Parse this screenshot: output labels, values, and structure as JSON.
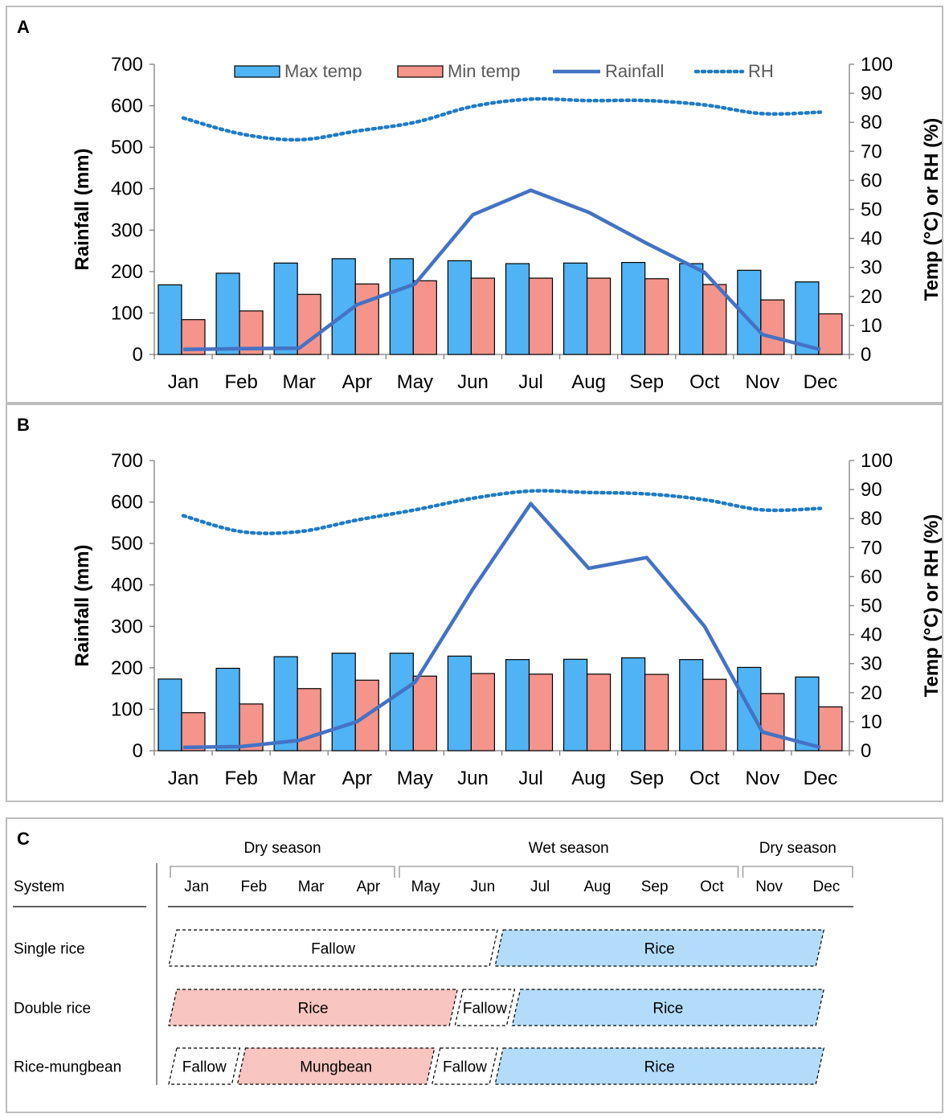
{
  "chart_data": [
    {
      "panel": "A",
      "type": "bar+line",
      "categories": [
        "Jan",
        "Feb",
        "Mar",
        "Apr",
        "May",
        "Jun",
        "Jul",
        "Aug",
        "Sep",
        "Oct",
        "Nov",
        "Dec"
      ],
      "series": [
        {
          "name": "Max temp",
          "type": "bar",
          "axis": "right",
          "color": "#4fb3f5",
          "values": [
            24,
            28,
            31.5,
            33,
            33,
            32.3,
            31.3,
            31.5,
            31.7,
            31.3,
            29,
            25
          ]
        },
        {
          "name": "Min temp",
          "type": "bar",
          "axis": "right",
          "color": "#f4948a",
          "values": [
            12,
            15,
            20.7,
            24.3,
            25.4,
            26.3,
            26.3,
            26.3,
            26.1,
            24.1,
            18.8,
            14
          ]
        },
        {
          "name": "Rainfall",
          "type": "line",
          "axis": "left",
          "color": "#4472c4",
          "values": [
            12,
            14,
            15,
            120,
            170,
            337,
            396,
            343,
            268,
            198,
            48,
            12
          ]
        },
        {
          "name": "RH",
          "type": "dotted-line",
          "axis": "right",
          "color": "#1f7bc4",
          "values": [
            81.5,
            76,
            74,
            77,
            80,
            85.5,
            88,
            87.5,
            87.5,
            86,
            83,
            83.5
          ]
        }
      ],
      "ylabel_left": "Rainfall (mm)",
      "ylim_left": [
        0,
        700
      ],
      "yticks_left": [
        "0",
        "100",
        "200",
        "300",
        "400",
        "500",
        "600",
        "700"
      ],
      "ylabel_right": "Temp (°C) or RH (%)",
      "ylim_right": [
        0,
        100
      ],
      "yticks_right": [
        "0",
        "10",
        "20",
        "30",
        "40",
        "50",
        "60",
        "70",
        "80",
        "90",
        "100"
      ],
      "legend_position": "top"
    },
    {
      "panel": "B",
      "type": "bar+line",
      "categories": [
        "Jan",
        "Feb",
        "Mar",
        "Apr",
        "May",
        "Jun",
        "Jul",
        "Aug",
        "Sep",
        "Oct",
        "Nov",
        "Dec"
      ],
      "series": [
        {
          "name": "Max temp",
          "type": "bar",
          "axis": "right",
          "color": "#4fb3f5",
          "values": [
            24.7,
            28.4,
            32.4,
            33.6,
            33.6,
            32.6,
            31.4,
            31.5,
            32,
            31.4,
            28.7,
            25.4
          ]
        },
        {
          "name": "Min temp",
          "type": "bar",
          "axis": "right",
          "color": "#f4948a",
          "values": [
            13.1,
            16.1,
            21.4,
            24.3,
            25.7,
            26.6,
            26.4,
            26.4,
            26.3,
            24.6,
            19.7,
            15.1
          ]
        },
        {
          "name": "Rainfall",
          "type": "line",
          "axis": "left",
          "color": "#4472c4",
          "values": [
            8,
            10,
            25,
            70,
            165,
            390,
            596,
            440,
            466,
            300,
            45,
            8
          ]
        },
        {
          "name": "RH",
          "type": "dotted-line",
          "axis": "right",
          "color": "#1f7bc4",
          "values": [
            81,
            75.5,
            75.5,
            79.5,
            83,
            87,
            89.5,
            89,
            88.5,
            86.5,
            83,
            83.5
          ]
        }
      ],
      "ylabel_left": "Rainfall (mm)",
      "ylim_left": [
        0,
        700
      ],
      "yticks_left": [
        "0",
        "100",
        "200",
        "300",
        "400",
        "500",
        "600",
        "700"
      ],
      "ylabel_right": "Temp (°C) or RH (%)",
      "ylim_right": [
        0,
        100
      ],
      "yticks_right": [
        "0",
        "10",
        "20",
        "30",
        "40",
        "50",
        "60",
        "70",
        "80",
        "90",
        "100"
      ]
    }
  ],
  "panels": {
    "a_label": "A",
    "b_label": "B",
    "c_label": "C"
  },
  "legend": {
    "max_temp": "Max temp",
    "min_temp": "Min temp",
    "rainfall": "Rainfall",
    "rh": "RH"
  },
  "colors": {
    "max_temp": "#4fb3f5",
    "min_temp": "#f4948a",
    "rainfall": "#4472c4",
    "rh": "#1f7bc4",
    "rice_wet": "#b3dcfb",
    "crop_dry": "#f8c5c0"
  },
  "calendar": {
    "seasons": [
      "Dry season",
      "Wet season",
      "Dry season"
    ],
    "system_header": "System",
    "months": [
      "Jan",
      "Feb",
      "Mar",
      "Apr",
      "May",
      "Jun",
      "Jul",
      "Aug",
      "Sep",
      "Oct",
      "Nov",
      "Dec"
    ],
    "rows": [
      {
        "system": "Single rice",
        "blocks": [
          {
            "label": "Fallow",
            "start_month": 1,
            "end_month": 6.7,
            "fill": "none"
          },
          {
            "label": "Rice",
            "start_month": 6.7,
            "end_month": 12.4,
            "fill": "rice_wet"
          }
        ]
      },
      {
        "system": "Double rice",
        "blocks": [
          {
            "label": "Rice",
            "start_month": 1,
            "end_month": 6,
            "fill": "crop_dry"
          },
          {
            "label": "Fallow",
            "start_month": 6,
            "end_month": 7,
            "fill": "none"
          },
          {
            "label": "Rice",
            "start_month": 7,
            "end_month": 12.4,
            "fill": "rice_wet"
          }
        ]
      },
      {
        "system": "Rice-mungbean",
        "blocks": [
          {
            "label": "Fallow",
            "start_month": 1,
            "end_month": 2.2,
            "fill": "none"
          },
          {
            "label": "Mungbean",
            "start_month": 2.2,
            "end_month": 5.6,
            "fill": "crop_dry"
          },
          {
            "label": "Fallow",
            "start_month": 5.6,
            "end_month": 6.7,
            "fill": "none"
          },
          {
            "label": "Rice",
            "start_month": 6.7,
            "end_month": 12.4,
            "fill": "rice_wet"
          }
        ]
      }
    ]
  }
}
